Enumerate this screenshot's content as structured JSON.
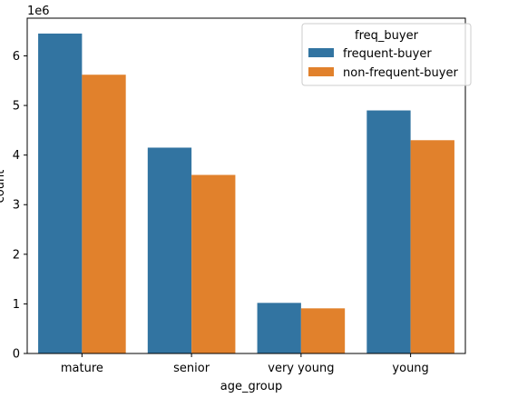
{
  "chart_data": {
    "type": "bar",
    "xlabel": "age_group",
    "ylabel": "count",
    "y_offset_label": "1e6",
    "categories": [
      "mature",
      "senior",
      "very young",
      "young"
    ],
    "series": [
      {
        "name": "frequent-buyer",
        "color": "#3274a1",
        "values": [
          6450000,
          4150000,
          1020000,
          4900000
        ]
      },
      {
        "name": "non-frequent-buyer",
        "color": "#e1812c",
        "values": [
          5620000,
          3600000,
          910000,
          4300000
        ]
      }
    ],
    "ylim": [
      0,
      6760000
    ],
    "yticks": [
      0,
      1000000,
      2000000,
      3000000,
      4000000,
      5000000,
      6000000
    ],
    "ytick_labels": [
      "0",
      "1",
      "2",
      "3",
      "4",
      "5",
      "6"
    ],
    "legend": {
      "title": "freq_buyer",
      "placement": "top-right"
    },
    "grid": false
  }
}
